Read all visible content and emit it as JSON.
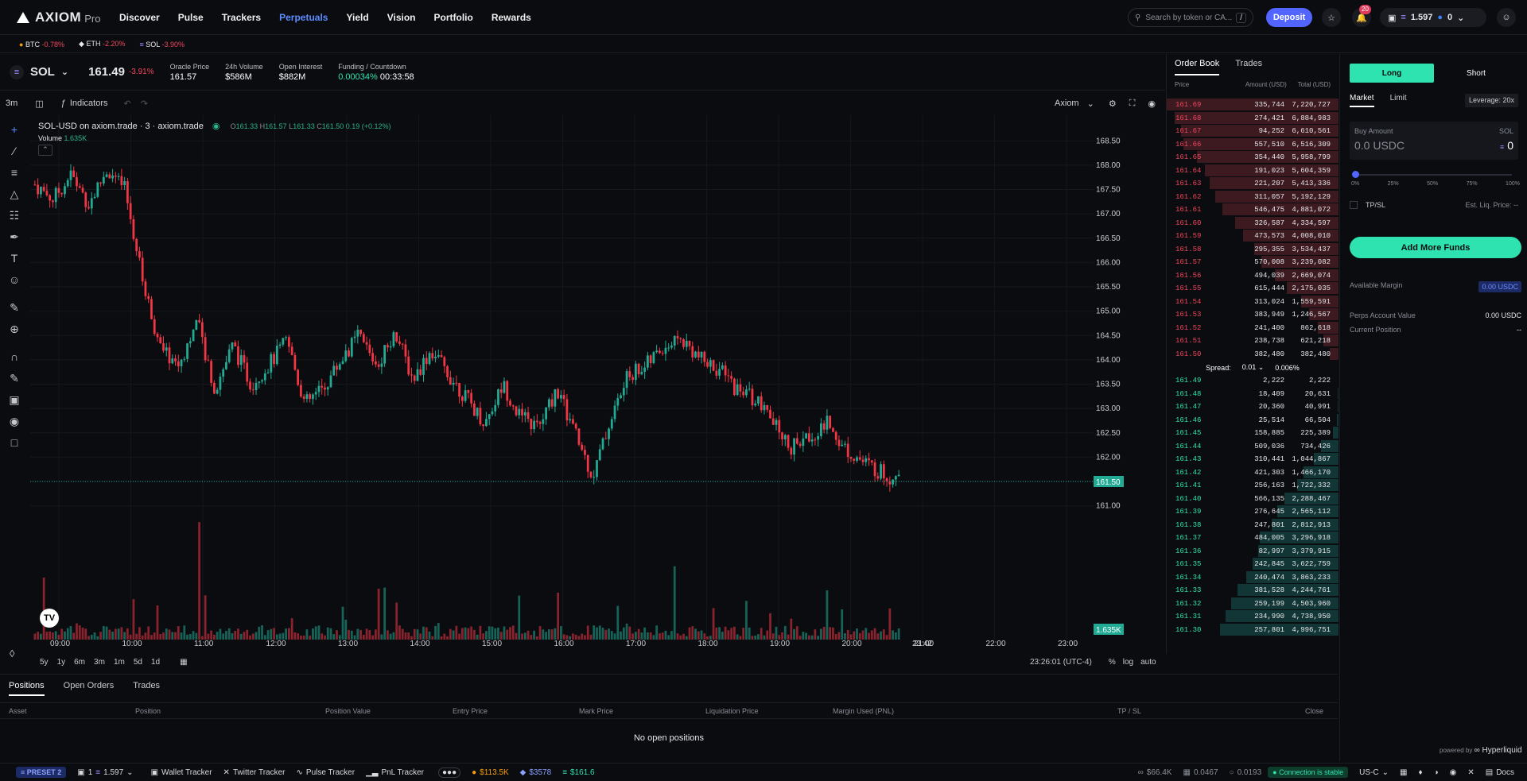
{
  "brand": {
    "name": "AXIOM",
    "suffix": "Pro"
  },
  "nav": [
    "Discover",
    "Pulse",
    "Trackers",
    "Perpetuals",
    "Yield",
    "Vision",
    "Portfolio",
    "Rewards"
  ],
  "nav_active": "Perpetuals",
  "search": {
    "placeholder": "Search by token or CA...",
    "shortcut": "/"
  },
  "deposit_label": "Deposit",
  "notifications": "20",
  "wallet": {
    "balance": "1.597",
    "count": "0"
  },
  "ticker": [
    {
      "sym": "BTC",
      "chg": "-0.78%"
    },
    {
      "sym": "ETH",
      "chg": "-2.20%"
    },
    {
      "sym": "SOL",
      "chg": "-3.90%"
    }
  ],
  "market": {
    "symbol": "SOL",
    "price": "161.49",
    "change": "-3.91%",
    "stats": [
      {
        "label": "Oracle Price",
        "value": "161.57"
      },
      {
        "label": "24h Volume",
        "value": "$586M"
      },
      {
        "label": "Open Interest",
        "value": "$882M"
      },
      {
        "label": "Funding / Countdown",
        "value": "0.00034%",
        "extra": "00:33:58"
      }
    ]
  },
  "chart_toolbar": {
    "interval": "3m",
    "indicators": "Indicators",
    "layout": "Axiom"
  },
  "chart_legend": {
    "title": "SOL-USD on axiom.trade · 3 · axiom.trade",
    "o": "161.33",
    "h": "161.57",
    "l": "161.33",
    "c": "161.50",
    "delta": "0.19 (+0.12%)",
    "volume_label": "Volume",
    "volume_value": "1.635K"
  },
  "timeframes": [
    "5y",
    "1y",
    "6m",
    "3m",
    "1m",
    "5d",
    "1d"
  ],
  "chart_footer": {
    "time": "23:26:01 (UTC-4)",
    "pct": "%",
    "log": "log",
    "auto": "auto"
  },
  "chart_data": {
    "type": "candlestick",
    "x": [
      "09:00",
      "10:00",
      "11:00",
      "12:00",
      "13:00",
      "14:00",
      "15:00",
      "16:00",
      "17:00",
      "18:00",
      "19:00",
      "20:00",
      "21:00",
      "22:00",
      "23:00",
      "23:42"
    ],
    "ylim": [
      160.7,
      168.7
    ],
    "y_ticks": [
      "168.50",
      "168.00",
      "167.50",
      "167.00",
      "166.50",
      "166.00",
      "165.50",
      "165.00",
      "164.50",
      "164.00",
      "163.50",
      "163.00",
      "162.50",
      "162.00",
      "161.50",
      "161.00"
    ],
    "last_price": "161.50",
    "last_volume": "1.635K",
    "closes": [
      167.6,
      167.3,
      167.8,
      167.2,
      167.9,
      167.5,
      165.6,
      164.2,
      163.9,
      164.8,
      163.4,
      164.3,
      163.5,
      163.9,
      164.4,
      163.1,
      163.4,
      164.0,
      164.5,
      163.9,
      164.6,
      163.6,
      164.2,
      163.7,
      163.2,
      162.7,
      163.5,
      162.8,
      162.6,
      163.4,
      162.5,
      161.6,
      162.8,
      163.7,
      163.9,
      164.3,
      164.4,
      164.0,
      163.8,
      163.4,
      163.2,
      162.7,
      162.2,
      162.4,
      162.7,
      162.2,
      161.9,
      161.7,
      161.5
    ],
    "series": [
      {
        "name": "Volume"
      }
    ]
  },
  "positions": {
    "tabs": [
      "Positions",
      "Open Orders",
      "Trades"
    ],
    "columns": [
      "Asset",
      "Position",
      "Position Value",
      "Entry Price",
      "Mark Price",
      "Liquidation Price",
      "Margin Used (PNL)",
      "TP / SL",
      "Close"
    ],
    "empty": "No open positions"
  },
  "orderbook": {
    "tabs": [
      "Order Book",
      "Trades"
    ],
    "headers": [
      "Price",
      "Amount (USD)",
      "Total (USD)"
    ],
    "asks": [
      [
        "161.69",
        "335,744",
        "7,220,727"
      ],
      [
        "161.68",
        "274,421",
        "6,884,983"
      ],
      [
        "161.67",
        "94,252",
        "6,610,561"
      ],
      [
        "161.66",
        "557,510",
        "6,516,309"
      ],
      [
        "161.65",
        "354,440",
        "5,958,799"
      ],
      [
        "161.64",
        "191,023",
        "5,604,359"
      ],
      [
        "161.63",
        "221,207",
        "5,413,336"
      ],
      [
        "161.62",
        "311,057",
        "5,192,129"
      ],
      [
        "161.61",
        "546,475",
        "4,881,072"
      ],
      [
        "161.60",
        "326,587",
        "4,334,597"
      ],
      [
        "161.59",
        "473,573",
        "4,008,010"
      ],
      [
        "161.58",
        "295,355",
        "3,534,437"
      ],
      [
        "161.57",
        "570,008",
        "3,239,082"
      ],
      [
        "161.56",
        "494,039",
        "2,669,074"
      ],
      [
        "161.55",
        "615,444",
        "2,175,035"
      ],
      [
        "161.54",
        "313,024",
        "1,559,591"
      ],
      [
        "161.53",
        "383,949",
        "1,246,567"
      ],
      [
        "161.52",
        "241,400",
        "862,618"
      ],
      [
        "161.51",
        "238,738",
        "621,218"
      ],
      [
        "161.50",
        "382,480",
        "382,480"
      ]
    ],
    "spread": {
      "label": "Spread:",
      "step": "0.01",
      "pct": "0.006%"
    },
    "bids": [
      [
        "161.49",
        "2,222",
        "2,222"
      ],
      [
        "161.48",
        "18,409",
        "20,631"
      ],
      [
        "161.47",
        "20,360",
        "40,991"
      ],
      [
        "161.46",
        "25,514",
        "66,504"
      ],
      [
        "161.45",
        "158,885",
        "225,389"
      ],
      [
        "161.44",
        "509,036",
        "734,426"
      ],
      [
        "161.43",
        "310,441",
        "1,044,867"
      ],
      [
        "161.42",
        "421,303",
        "1,466,170"
      ],
      [
        "161.41",
        "256,163",
        "1,722,332"
      ],
      [
        "161.40",
        "566,135",
        "2,288,467"
      ],
      [
        "161.39",
        "276,645",
        "2,565,112"
      ],
      [
        "161.38",
        "247,801",
        "2,812,913"
      ],
      [
        "161.37",
        "484,005",
        "3,296,918"
      ],
      [
        "161.36",
        "82,997",
        "3,379,915"
      ],
      [
        "161.35",
        "242,845",
        "3,622,759"
      ],
      [
        "161.34",
        "240,474",
        "3,863,233"
      ],
      [
        "161.33",
        "381,528",
        "4,244,761"
      ],
      [
        "161.32",
        "259,199",
        "4,503,960"
      ],
      [
        "161.31",
        "234,990",
        "4,738,950"
      ],
      [
        "161.30",
        "257,801",
        "4,996,751"
      ]
    ]
  },
  "trade": {
    "long": "Long",
    "short": "Short",
    "types": [
      "Market",
      "Limit"
    ],
    "leverage": "Leverage: 20x",
    "buy_label": "Buy Amount",
    "asset": "SOL",
    "amount_placeholder": "0.0 USDC",
    "asset_amount": "0",
    "slider": [
      "0%",
      "25%",
      "50%",
      "75%",
      "100%"
    ],
    "slider_value": 0,
    "tpsl": "TP/SL",
    "liq_label": "Est. Liq. Price:",
    "liq_value": "--",
    "add_funds": "Add More Funds",
    "available_margin_label": "Available Margin",
    "available_margin": "0.00 USDC",
    "account_value_label": "Perps Account Value",
    "account_value": "0.00 USDC",
    "current_position_label": "Current Position",
    "current_position": "--",
    "powered": "powered by",
    "powered_brand": "Hyperliquid"
  },
  "footer": {
    "preset": "PRESET 2",
    "wallets": "1",
    "wallet_balance": "1.597",
    "trackers": [
      "Wallet Tracker",
      "Twitter Tracker",
      "Pulse Tracker",
      "PnL Tracker"
    ],
    "btc": "$113.5K",
    "eth": "$3578",
    "sol": "$161.6",
    "stats": [
      "$66.4K",
      "0.0467",
      "0.0193"
    ],
    "connection": "Connection is stable",
    "region": "US-C",
    "docs": "Docs"
  },
  "colors": {
    "up": "#22ab94",
    "down": "#f23645",
    "accent": "#5266ff",
    "long": "#2ee3b0"
  }
}
